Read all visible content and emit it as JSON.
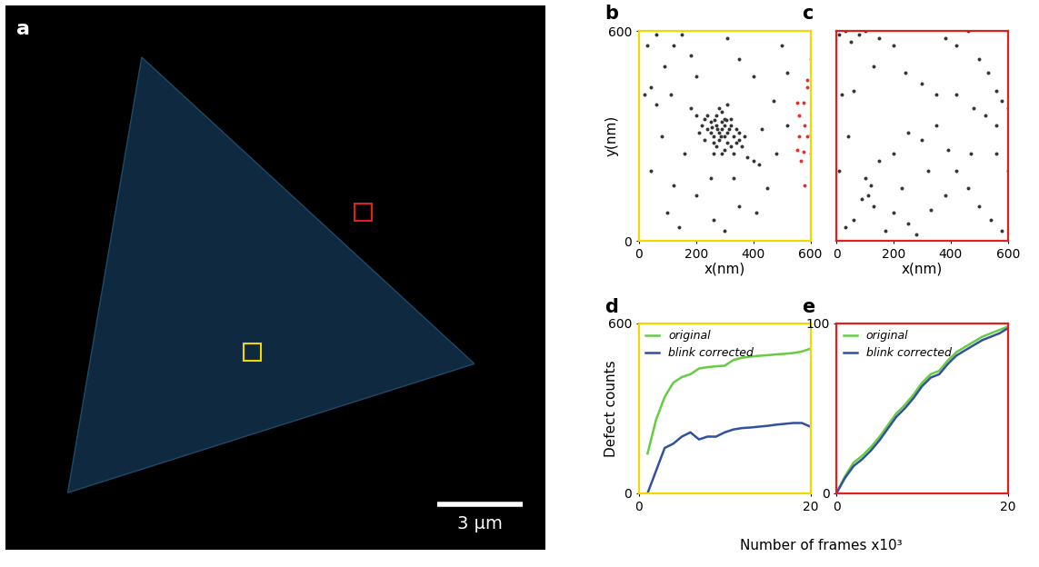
{
  "image": {
    "title": "a",
    "scale_bar": {
      "label": "3 µm",
      "length": 3
    },
    "regions": [
      {
        "color": "#f0d800"
      },
      {
        "color": "#e02020"
      }
    ]
  },
  "chart_data": [
    {
      "type": "scatter",
      "title": "b",
      "xlabel": "x(nm)",
      "ylabel": "y(nm)",
      "xlim": [
        0,
        600
      ],
      "ylim": [
        0,
        600
      ],
      "xticks": [
        0,
        200,
        400,
        600
      ],
      "yticks": [
        0,
        600
      ],
      "series": [
        {
          "color": "#333333",
          "x": [
            250,
            270,
            290,
            310,
            260,
            280,
            300,
            320,
            240,
            330,
            350,
            270,
            290,
            310,
            230,
            280,
            300,
            260,
            340,
            360,
            250,
            320,
            290,
            270,
            300,
            330,
            380,
            220,
            240,
            310,
            350,
            370,
            200,
            180,
            320,
            340,
            290,
            260,
            230,
            400,
            420,
            210,
            280,
            300,
            275,
            305,
            255,
            285,
            315,
            265,
            20,
            40,
            60,
            90,
            120,
            150,
            180,
            200,
            110,
            80,
            40,
            120,
            200,
            260,
            300,
            350,
            410,
            450,
            480,
            430,
            470,
            400,
            350,
            310,
            500,
            520,
            60,
            30,
            250,
            330,
            160,
            520,
            100,
            140
          ],
          "y": [
            340,
            330,
            320,
            310,
            300,
            290,
            350,
            330,
            320,
            300,
            290,
            360,
            370,
            280,
            350,
            310,
            300,
            280,
            320,
            270,
            310,
            350,
            340,
            270,
            260,
            250,
            240,
            330,
            360,
            390,
            310,
            300,
            360,
            380,
            270,
            280,
            250,
            250,
            290,
            230,
            220,
            310,
            380,
            330,
            320,
            345,
            325,
            300,
            320,
            345,
            420,
            440,
            390,
            500,
            560,
            590,
            530,
            470,
            420,
            300,
            200,
            160,
            130,
            60,
            30,
            100,
            80,
            150,
            250,
            320,
            400,
            470,
            520,
            580,
            560,
            480,
            590,
            560,
            180,
            180,
            250,
            330,
            80,
            40
          ]
        },
        {
          "color": "#e03030",
          "x": [
            555,
            575,
            560,
            580,
            560,
            590,
            600,
            555,
            575,
            565,
            600,
            580,
            590,
            600,
            590
          ],
          "y": [
            395,
            395,
            360,
            330,
            300,
            300,
            305,
            260,
            255,
            230,
            250,
            160,
            460,
            520,
            440
          ]
        }
      ]
    },
    {
      "type": "scatter",
      "title": "c",
      "xlabel": "x(nm)",
      "tick_labels": "x",
      "xlim": [
        0,
        600
      ],
      "ylim": [
        0,
        600
      ],
      "xticks": [
        0,
        200,
        400,
        600
      ],
      "series": [
        {
          "color": "#333333",
          "x": [
            10,
            30,
            50,
            80,
            100,
            150,
            200,
            60,
            20,
            130,
            240,
            300,
            350,
            380,
            420,
            460,
            500,
            530,
            560,
            580,
            600,
            420,
            480,
            520,
            560,
            350,
            300,
            250,
            200,
            150,
            100,
            120,
            110,
            90,
            130,
            60,
            30,
            200,
            250,
            280,
            330,
            380,
            420,
            460,
            500,
            540,
            580,
            600,
            470,
            390,
            230,
            170,
            10,
            40,
            320,
            560
          ],
          "y": [
            590,
            600,
            570,
            590,
            600,
            580,
            560,
            430,
            420,
            500,
            480,
            450,
            420,
            580,
            560,
            600,
            520,
            480,
            430,
            400,
            380,
            420,
            380,
            360,
            330,
            330,
            290,
            310,
            250,
            230,
            180,
            160,
            130,
            120,
            100,
            60,
            40,
            80,
            50,
            20,
            90,
            130,
            200,
            150,
            100,
            60,
            30,
            200,
            250,
            260,
            150,
            30,
            200,
            300,
            200,
            250
          ]
        }
      ]
    },
    {
      "type": "line",
      "title": "d",
      "ylabel": "Defect counts",
      "xlabel": "Number of frames x10³",
      "xlim": [
        0,
        20
      ],
      "ylim": [
        0,
        600
      ],
      "xticks": [
        0,
        20
      ],
      "yticks": [
        0,
        600
      ],
      "legend": "upper left",
      "x": [
        1,
        2,
        3,
        4,
        5,
        6,
        7,
        8,
        9,
        10,
        11,
        12,
        13,
        14,
        15,
        16,
        17,
        18,
        19,
        20
      ],
      "series": [
        {
          "name": "original",
          "color": "#66cc44",
          "values": [
            140,
            260,
            340,
            390,
            410,
            420,
            440,
            445,
            448,
            450,
            470,
            478,
            482,
            485,
            487,
            490,
            492,
            495,
            500,
            510
          ]
        },
        {
          "name": "blink corrected",
          "color": "#3050a0",
          "values": [
            0,
            80,
            160,
            175,
            200,
            215,
            190,
            200,
            200,
            215,
            225,
            230,
            232,
            235,
            238,
            242,
            245,
            248,
            248,
            235
          ]
        }
      ]
    },
    {
      "type": "line",
      "title": "e",
      "xlim": [
        0,
        20
      ],
      "ylim": [
        0,
        100
      ],
      "xticks": [
        0,
        20
      ],
      "yticks": [
        0,
        100
      ],
      "legend": "upper left",
      "x": [
        0,
        1,
        2,
        3,
        4,
        5,
        6,
        7,
        8,
        9,
        10,
        11,
        12,
        13,
        14,
        15,
        16,
        17,
        18,
        19,
        20
      ],
      "series": [
        {
          "name": "original",
          "color": "#66cc44",
          "values": [
            0,
            10,
            18,
            22,
            27,
            33,
            40,
            47,
            52,
            58,
            65,
            70,
            72,
            78,
            83,
            86,
            89,
            92,
            94,
            96,
            98
          ]
        },
        {
          "name": "blink corrected",
          "color": "#3050a0",
          "values": [
            0,
            9,
            16,
            20,
            25,
            31,
            38,
            45,
            50,
            56,
            63,
            68,
            70,
            76,
            81,
            84,
            87,
            90,
            92,
            94,
            97
          ]
        }
      ]
    }
  ]
}
